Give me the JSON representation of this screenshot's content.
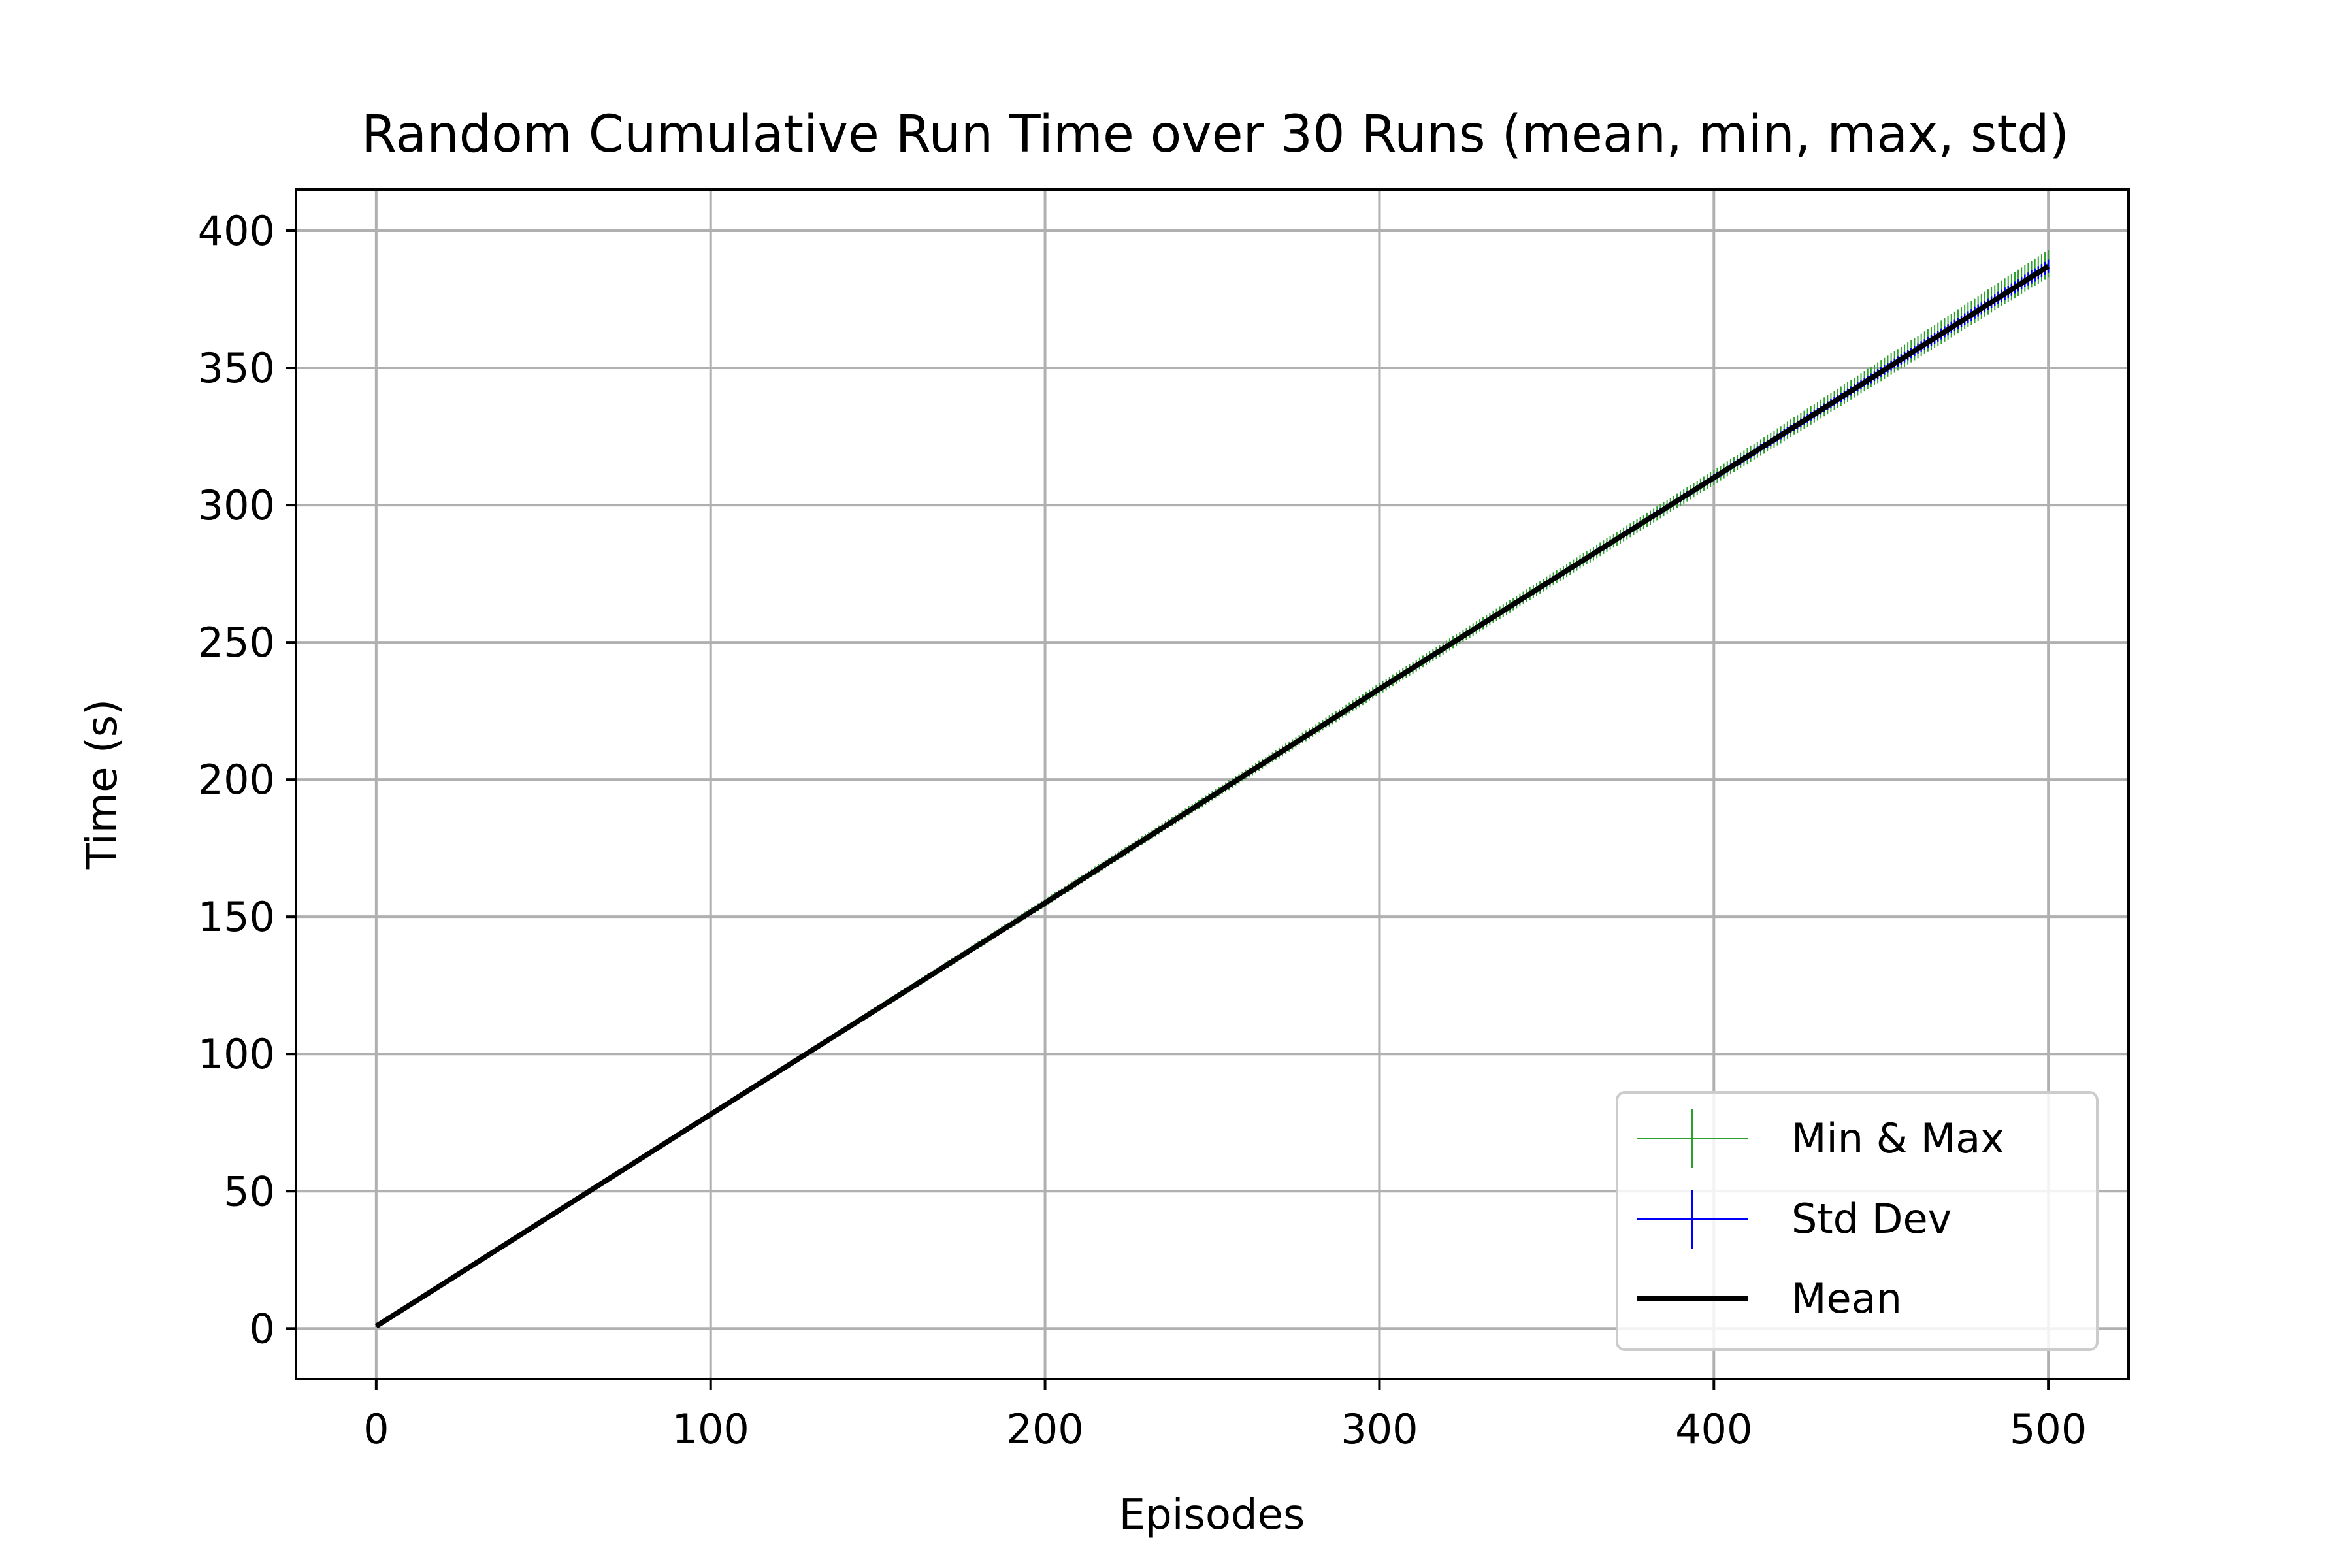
{
  "chart_data": {
    "type": "line",
    "title": "Random Cumulative Run Time over 30 Runs (mean, min, max, std)",
    "xlabel": "Episodes",
    "ylabel": "Time (s)",
    "xlim": [
      -24,
      524
    ],
    "ylim": [
      -18.5,
      415
    ],
    "xticks": [
      0,
      100,
      200,
      300,
      400,
      500
    ],
    "yticks": [
      0,
      50,
      100,
      150,
      200,
      250,
      300,
      350,
      400
    ],
    "grid": true,
    "legend": {
      "placement": "lower-right",
      "entries": [
        "Min & Max",
        "Std Dev",
        "Mean"
      ]
    },
    "x_range": [
      0,
      500
    ],
    "series": [
      {
        "name": "Mean",
        "x": [
          0,
          100,
          200,
          300,
          400,
          500
        ],
        "y": [
          0.8,
          78,
          155,
          233,
          310,
          387
        ],
        "color": "#000000"
      },
      {
        "name": "Min & Max",
        "type": "errorbar",
        "x": [
          0,
          100,
          200,
          300,
          400,
          500
        ],
        "y_min": [
          0.7,
          77.2,
          153.6,
          231.0,
          307.4,
          383.0
        ],
        "y_max": [
          0.9,
          78.9,
          156.5,
          235.1,
          312.7,
          393.0
        ],
        "color": "#2ca02c"
      },
      {
        "name": "Std Dev",
        "type": "errorbar",
        "x": [
          0,
          100,
          200,
          300,
          400,
          500
        ],
        "y_min": [
          0.75,
          77.6,
          154.3,
          232.0,
          308.8,
          384.6
        ],
        "y_max": [
          0.85,
          78.4,
          155.7,
          234.0,
          311.2,
          389.4
        ],
        "color": "#0000ff"
      }
    ]
  }
}
